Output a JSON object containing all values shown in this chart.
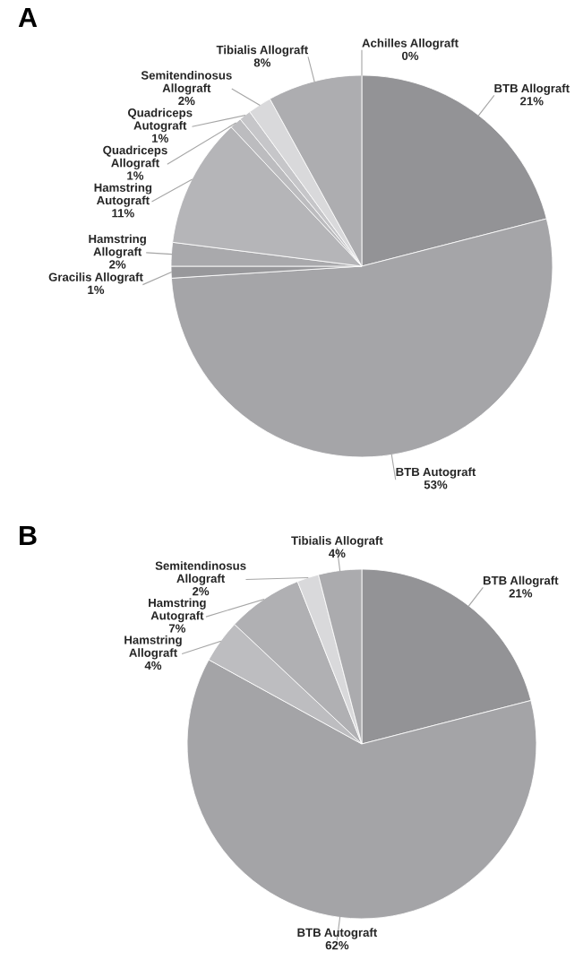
{
  "chart_data": [
    {
      "type": "pie",
      "title": "A",
      "categories": [
        "Achilles Allograft",
        "BTB Allograft",
        "BTB Autograft",
        "Gracilis Allograft",
        "Hamstring Allograft",
        "Hamstring Autograft",
        "Quadriceps Allograft",
        "Quadriceps Autograft",
        "Semitendinosus Allograft",
        "Tibialis Allograft"
      ],
      "values": [
        0,
        21,
        53,
        1,
        2,
        11,
        1,
        1,
        2,
        8
      ],
      "value_labels": [
        "0%",
        "21%",
        "53%",
        "1%",
        "2%",
        "11%",
        "1%",
        "1%",
        "2%",
        "8%"
      ],
      "colors": [
        "#7f7f82",
        "#939396",
        "#a5a5a8",
        "#98989b",
        "#a9a9ac",
        "#b5b5b8",
        "#bcbcbf",
        "#c6c6c9",
        "#d9d9db",
        "#adadb0"
      ]
    },
    {
      "type": "pie",
      "title": "B",
      "categories": [
        "BTB Allograft",
        "BTB Autograft",
        "Hamstring Allograft",
        "Hamstring Autograft",
        "Semitendinosus Allograft",
        "Tibialis Allograft"
      ],
      "values": [
        21,
        62,
        4,
        7,
        2,
        4
      ],
      "value_labels": [
        "21%",
        "62%",
        "4%",
        "7%",
        "2%",
        "4%"
      ],
      "colors": [
        "#939396",
        "#a4a4a7",
        "#bdbdc0",
        "#b0b0b3",
        "#d9d9db",
        "#ababae"
      ]
    }
  ]
}
